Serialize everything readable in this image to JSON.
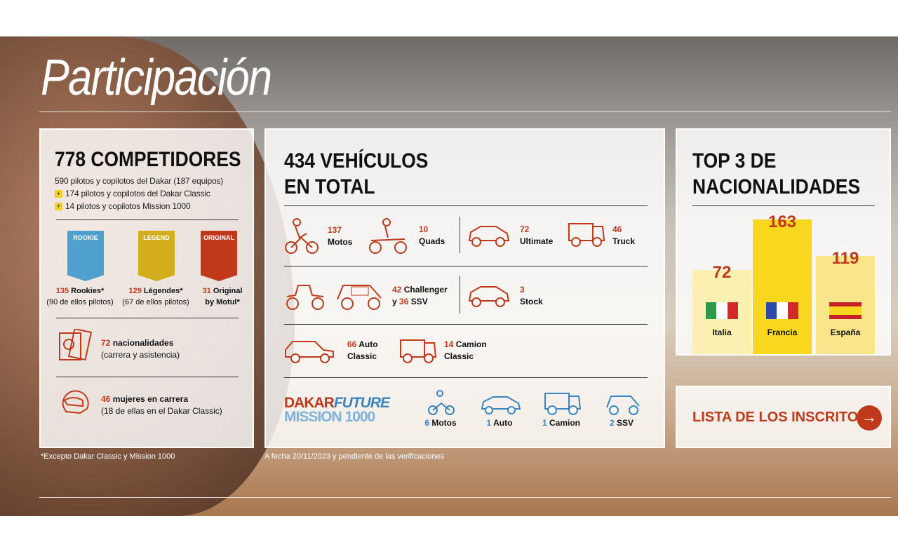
{
  "title": "Participación",
  "competitors": {
    "heading": "778 COMPETIDORES",
    "line1": "590 pilotos y copilotos del Dakar (187 equipos)",
    "line2": "174 pilotos y copilotos del Dakar Classic",
    "line3": "14 pilotos y copilotos Mission 1000",
    "badges": [
      {
        "label": "ROOKIE",
        "num": "135",
        "text": "Rookies*",
        "sub": "(90 de ellos pilotos)",
        "color": "#4f9fcf"
      },
      {
        "label": "LEGEND",
        "num": "129",
        "text": "Légendes*",
        "sub": "(67 de ellos pilotos)",
        "color": "#d4ad1c"
      },
      {
        "label": "ORIGINAL",
        "num": "31",
        "text": "Original",
        "sub": "by Motul*",
        "color": "#c0391b"
      }
    ],
    "nat_num": "72",
    "nat_text": "nacionalidades",
    "nat_sub": "(carrera y asistencia)",
    "women_num": "46",
    "women_text": "mujeres en carrera",
    "women_sub": "(18 de ellas en el Dakar Classic)",
    "footnote": "*Excepto Dakar Classic y Mission 1000"
  },
  "vehicles": {
    "heading1": "434 VEHÍCULOS",
    "heading2": "EN TOTAL",
    "motos": {
      "num": "137",
      "label": "Motos"
    },
    "quads": {
      "num": "10",
      "label": "Quads"
    },
    "ultimate": {
      "num": "72",
      "label": "Ultimate"
    },
    "truck": {
      "num": "46",
      "label": "Truck"
    },
    "challenger": {
      "num": "42",
      "label": "Challenger",
      "and": "y",
      "num2": "36",
      "label2": "SSV"
    },
    "stock": {
      "num": "3",
      "label": "Stock"
    },
    "auto_classic": {
      "num": "66",
      "label": "Auto",
      "label2": "Classic"
    },
    "camion_classic": {
      "num": "14",
      "label": "Camion",
      "label2": "Classic"
    },
    "future_logo1": "DAKAR",
    "future_logo2": "FUTURE",
    "future_logo3": "MISSION 1000",
    "future": [
      {
        "num": "6",
        "label": "Motos"
      },
      {
        "num": "1",
        "label": "Auto"
      },
      {
        "num": "1",
        "label": "Camion"
      },
      {
        "num": "2",
        "label": "SSV"
      }
    ],
    "footnote": "A fecha 20/11/2023 y pendiente de las verificaciones"
  },
  "top3": {
    "heading1": "TOP 3 DE",
    "heading2": "NACIONALIDADES",
    "bars": [
      {
        "country": "Italia",
        "value": "72"
      },
      {
        "country": "Francia",
        "value": "163"
      },
      {
        "country": "España",
        "value": "119"
      }
    ],
    "button": "LISTA DE LOS INSCRITOS"
  },
  "colors": {
    "accent": "#c0391b",
    "future_blue": "#3a84c0",
    "yellow": "#f8d81e"
  }
}
